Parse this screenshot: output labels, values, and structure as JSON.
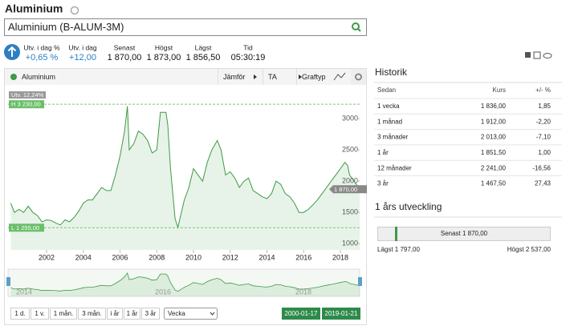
{
  "header": {
    "title": "Aluminium",
    "search": "Aluminium (B-ALUM-3M)"
  },
  "quote": [
    {
      "label": "Utv. i dag %",
      "value": "+0,65 %"
    },
    {
      "label": "Utv. i dag",
      "value": "+12,00"
    },
    {
      "label": "Senast",
      "value": "1 870,00"
    },
    {
      "label": "Högst",
      "value": "1 873,00"
    },
    {
      "label": "Lägst",
      "value": "1 856,50"
    },
    {
      "label": "Tid",
      "value": "05:30:19"
    }
  ],
  "toolbar": {
    "buttons": [
      "Jämför",
      "TA",
      "Graftyp"
    ]
  },
  "chart_data": {
    "type": "line",
    "x": [
      2000.05,
      2000.25,
      2000.5,
      2000.75,
      2001,
      2001.25,
      2001.5,
      2001.75,
      2002,
      2002.25,
      2002.5,
      2002.75,
      2003,
      2003.25,
      2003.5,
      2003.75,
      2004,
      2004.25,
      2004.5,
      2004.75,
      2005,
      2005.25,
      2005.5,
      2005.75,
      2006,
      2006.25,
      2006.4,
      2006.5,
      2006.75,
      2007,
      2007.25,
      2007.5,
      2007.75,
      2008,
      2008.2,
      2008.5,
      2008.6,
      2008.75,
      2009,
      2009.15,
      2009.5,
      2009.75,
      2010,
      2010.25,
      2010.5,
      2010.75,
      2011,
      2011.3,
      2011.5,
      2011.75,
      2012,
      2012.25,
      2012.5,
      2012.75,
      2013,
      2013.25,
      2013.5,
      2013.75,
      2014,
      2014.25,
      2014.5,
      2014.75,
      2015,
      2015.25,
      2015.5,
      2015.75,
      2016,
      2016.25,
      2016.5,
      2016.75,
      2017,
      2017.25,
      2017.5,
      2017.75,
      2018,
      2018.25,
      2018.4,
      2018.5,
      2018.75,
      2019.05
    ],
    "series": [
      {
        "name": "Aluminium",
        "color": "#3d9a45",
        "values": [
          1650,
          1500,
          1550,
          1500,
          1600,
          1500,
          1450,
          1350,
          1380,
          1370,
          1330,
          1300,
          1380,
          1350,
          1420,
          1520,
          1650,
          1700,
          1700,
          1800,
          1900,
          1850,
          1850,
          2100,
          2400,
          2800,
          3200,
          2500,
          2600,
          2800,
          2750,
          2650,
          2450,
          2500,
          3100,
          3100,
          2900,
          2200,
          1400,
          1260,
          1700,
          1900,
          2200,
          2100,
          2000,
          2300,
          2500,
          2650,
          2500,
          2100,
          2150,
          2050,
          1900,
          2000,
          2050,
          1850,
          1800,
          1750,
          1720,
          1800,
          2000,
          1950,
          1800,
          1750,
          1650,
          1500,
          1500,
          1550,
          1620,
          1700,
          1800,
          1900,
          2000,
          2100,
          2200,
          2300,
          2250,
          2100,
          2000,
          1870
        ]
      }
    ],
    "xlim": [
      1999.9,
      2019.05
    ],
    "xticks": [
      2002,
      2004,
      2006,
      2008,
      2010,
      2012,
      2014,
      2016,
      2018
    ],
    "ylim": [
      900,
      3450
    ],
    "yticks": [
      1000,
      1500,
      2000,
      2500,
      3000
    ],
    "grid": false,
    "change_label": "Utv. 12,24%",
    "high": {
      "value": 3230,
      "label": "H 3 230,00"
    },
    "low": {
      "value": 1255,
      "label": "L 1 255,00"
    },
    "last": {
      "value": 1870,
      "label": "1 870,00"
    }
  },
  "navigator": {
    "labels": [
      "2014",
      "2016",
      "2018"
    ]
  },
  "range_buttons": [
    "1 d.",
    "1 v.",
    "1 mån.",
    "3 mån.",
    "i år",
    "1 år",
    "3 år"
  ],
  "interval": "Vecka",
  "date_range": [
    "2000-01-17",
    "2019-01-21"
  ],
  "history": {
    "title": "Historik",
    "columns": [
      "Sedan",
      "Kurs",
      "+/- %"
    ],
    "rows": [
      [
        "1 vecka",
        "1 836,00",
        "1,85"
      ],
      [
        "1 månad",
        "1 912,00",
        "-2,20"
      ],
      [
        "3 månader",
        "2 013,00",
        "-7,10"
      ],
      [
        "1 år",
        "1 851,50",
        "1,00"
      ],
      [
        "12 månader",
        "2 241,00",
        "-16,56"
      ],
      [
        "3 år",
        "1 467,50",
        "27,43"
      ]
    ]
  },
  "development": {
    "title": "1 års utveckling",
    "last": "Senast 1 870,00",
    "low": "Lägst 1 797,00",
    "high": "Högst 2 537,00"
  }
}
